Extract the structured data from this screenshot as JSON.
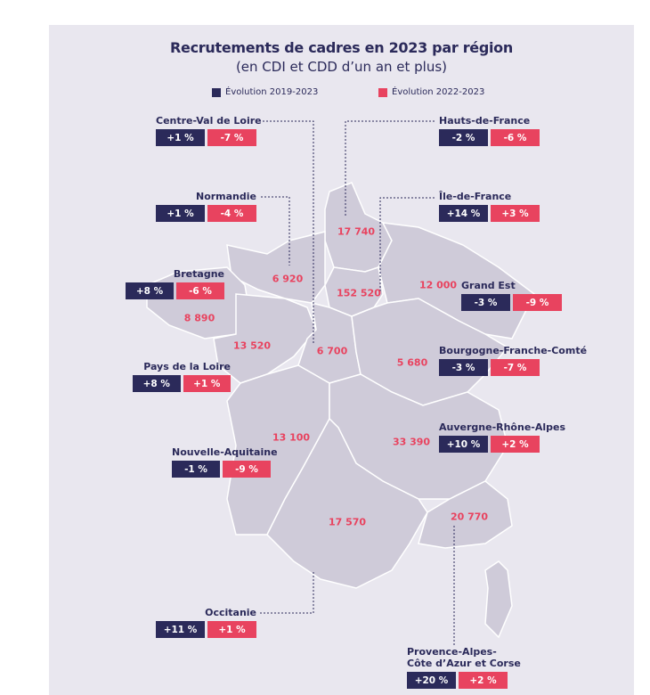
{
  "title": "Recrutements de cadres en 2023 par région",
  "subtitle": "(en CDI et CDD d’un an et plus)",
  "legend": [
    {
      "label": "Évolution 2019-2023",
      "color": "#2b2a5a"
    },
    {
      "label": "Évolution 2022-2023",
      "color": "#e8435f"
    }
  ],
  "regions": {
    "hdf": {
      "name": "Hauts-de-France",
      "value": "17 740",
      "evo_2019": "-2 %",
      "evo_2022": "-6 %"
    },
    "idf": {
      "name": "Île-de-France",
      "value": "152 520",
      "evo_2019": "+14 %",
      "evo_2022": "+3 %"
    },
    "ge": {
      "name": "Grand Est",
      "value": "12 000",
      "evo_2019": "-3 %",
      "evo_2022": "-9 %"
    },
    "nor": {
      "name": "Normandie",
      "value": "6 920",
      "evo_2019": "+1 %",
      "evo_2022": "-4 %"
    },
    "bre": {
      "name": "Bretagne",
      "value": "8 890",
      "evo_2019": "+8 %",
      "evo_2022": "-6 %"
    },
    "pdl": {
      "name": "Pays de la Loire",
      "value": "13 520",
      "evo_2019": "+8 %",
      "evo_2022": "+1 %"
    },
    "cvl": {
      "name": "Centre-Val de Loire",
      "value": "6 700",
      "evo_2019": "+1 %",
      "evo_2022": "-7 %"
    },
    "bfc": {
      "name": "Bourgogne-Franche-Comté",
      "value": "5 680",
      "evo_2019": "-3 %",
      "evo_2022": "-7 %"
    },
    "na": {
      "name": "Nouvelle-Aquitaine",
      "value": "13 100",
      "evo_2019": "-1 %",
      "evo_2022": "-9 %"
    },
    "ara": {
      "name": "Auvergne-Rhône-Alpes",
      "value": "33 390",
      "evo_2019": "+10 %",
      "evo_2022": "+2 %"
    },
    "occ": {
      "name": "Occitanie",
      "value": "17 570",
      "evo_2019": "+11 %",
      "evo_2022": "+1 %"
    },
    "paca": {
      "name_line1": "Provence-Alpes-",
      "name_line2": "Côte d’Azur et Corse",
      "value": "20 770",
      "evo_2019": "+20 %",
      "evo_2022": "+2 %"
    }
  }
}
